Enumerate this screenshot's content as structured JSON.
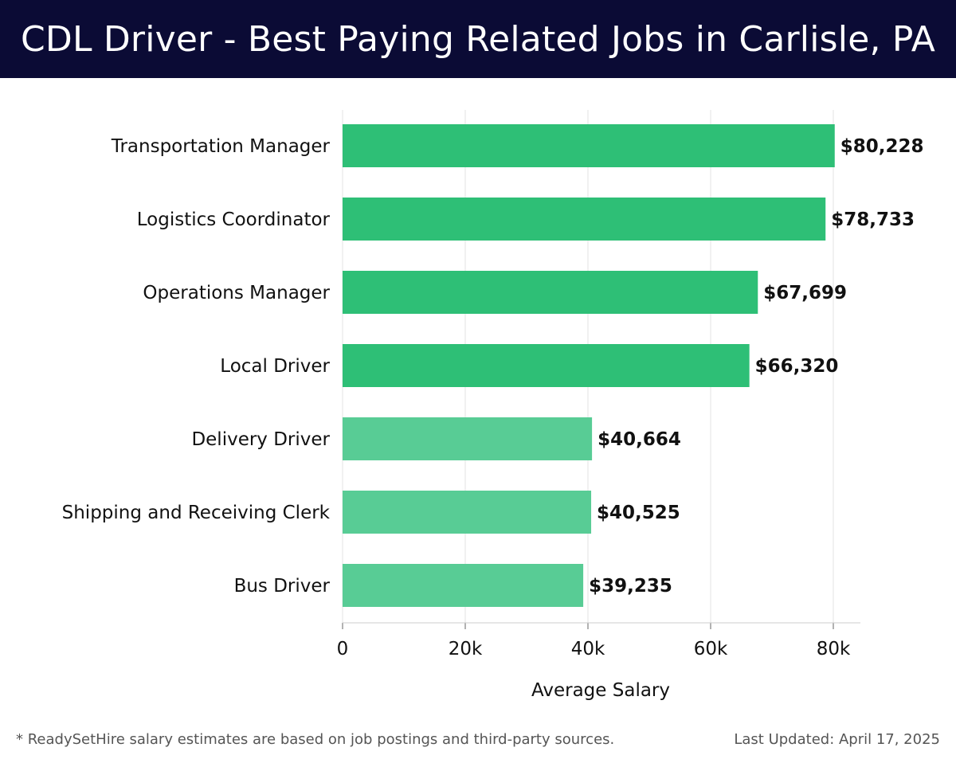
{
  "header": {
    "title": "CDL Driver - Best Paying Related Jobs in Carlisle, PA"
  },
  "footer": {
    "note": "* ReadySetHire salary estimates are based on job postings and third-party sources.",
    "updated": "Last Updated: April 17, 2025"
  },
  "colors": {
    "header_bg": "#0b0b35",
    "bar_dark": "#2ebf76",
    "bar_light": "#58cc95"
  },
  "chart_data": {
    "type": "bar",
    "orientation": "horizontal",
    "title": "CDL Driver - Best Paying Related Jobs in Carlisle, PA",
    "xlabel": "Average Salary",
    "ylabel": "",
    "xlim": [
      0,
      84000
    ],
    "x_ticks": [
      {
        "value": 0,
        "label": "0"
      },
      {
        "value": 20000,
        "label": "20k"
      },
      {
        "value": 40000,
        "label": "40k"
      },
      {
        "value": 60000,
        "label": "60k"
      },
      {
        "value": 80000,
        "label": "80k"
      }
    ],
    "grid": true,
    "categories": [
      "Transportation Manager",
      "Logistics Coordinator",
      "Operations Manager",
      "Local Driver",
      "Delivery Driver",
      "Shipping and Receiving Clerk",
      "Bus Driver"
    ],
    "values": [
      80228,
      78733,
      67699,
      66320,
      40664,
      40525,
      39235
    ],
    "value_labels": [
      "$80,228",
      "$78,733",
      "$67,699",
      "$66,320",
      "$40,664",
      "$40,525",
      "$39,235"
    ],
    "highlight": [
      true,
      true,
      true,
      true,
      false,
      false,
      false
    ]
  }
}
